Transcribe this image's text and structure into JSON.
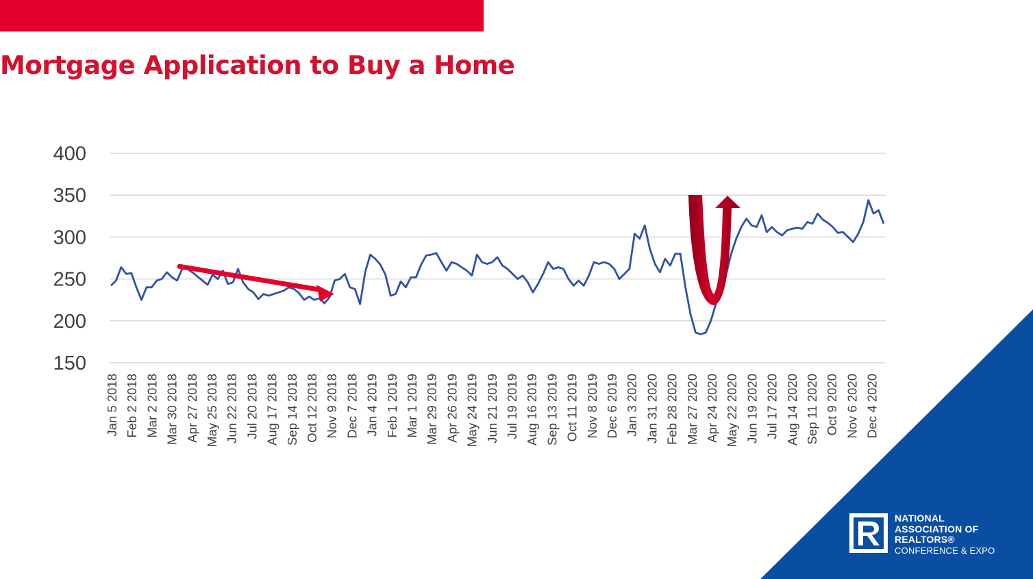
{
  "slide": {
    "title": "Mortgage Application to Buy a Home",
    "accent_color": "#e4002b",
    "corner_color": "#0a4ea2"
  },
  "logo": {
    "icon": "realtor-r-icon",
    "line1": "NATIONAL",
    "line2": "ASSOCIATION OF",
    "line3": "REALTORS®",
    "line4": "CONFERENCE & EXPO"
  },
  "chart_data": {
    "type": "line",
    "title": "",
    "xlabel": "",
    "ylabel": "",
    "ylim": [
      150,
      400
    ],
    "yticks": [
      150,
      200,
      250,
      300,
      350,
      400
    ],
    "grid": true,
    "line_color": "#2f52a6",
    "x_tick_labels": [
      "Jan 5 2018",
      "Feb 2 2018",
      "Mar 2 2018",
      "Mar 30 2018",
      "Apr 27 2018",
      "May 25 2018",
      "Jun 22 2018",
      "Jul 20 2018",
      "Aug 17 2018",
      "Sep 14 2018",
      "Oct 12 2018",
      "Nov 9 2018",
      "Dec 7 2018",
      "Jan 4 2019",
      "Feb 1 2019",
      "Mar 1 2019",
      "Mar 29 2019",
      "Apr 26 2019",
      "May 24 2019",
      "Jun 21 2019",
      "Jul 19 2019",
      "Aug 16 2019",
      "Sep 13 2019",
      "Oct 11 2019",
      "Nov 8 2019",
      "Dec 6 2019",
      "Jan 3 2020",
      "Jan 31 2020",
      "Feb 28 2020",
      "Mar 27 2020",
      "Apr 24 2020",
      "May 22 2020",
      "Jun 19 2020",
      "Jul 17 2020",
      "Aug 14 2020",
      "Sep 11 2020",
      "Oct 9 2020",
      "Nov 6 2020",
      "Dec 4 2020"
    ],
    "series": [
      {
        "values": [
          242,
          248,
          264,
          256,
          257,
          240,
          225,
          240,
          240,
          248,
          250,
          258,
          252,
          248,
          262,
          262,
          258,
          253,
          248,
          243,
          255,
          250,
          260,
          244,
          246,
          262,
          246,
          238,
          234,
          226,
          232,
          230,
          232,
          234,
          236,
          240,
          238,
          233,
          225,
          229,
          225,
          227,
          221,
          228,
          248,
          250,
          256,
          240,
          238,
          220,
          258,
          279,
          274,
          267,
          255,
          230,
          232,
          247,
          240,
          252,
          252,
          267,
          278,
          279,
          281,
          270,
          260,
          270,
          268,
          264,
          260,
          254,
          279,
          270,
          268,
          270,
          276,
          266,
          262,
          256,
          250,
          254,
          246,
          234,
          244,
          256,
          270,
          262,
          264,
          262,
          250,
          242,
          248,
          242,
          254,
          270,
          268,
          270,
          268,
          262,
          250,
          256,
          262,
          304,
          298,
          314,
          286,
          268,
          258,
          274,
          266,
          280,
          280,
          240,
          208,
          186,
          184,
          186,
          200,
          220,
          235,
          255,
          280,
          298,
          312,
          322,
          314,
          312,
          326,
          306,
          312,
          306,
          302,
          308,
          310,
          311,
          310,
          318,
          316,
          328,
          321,
          317,
          312,
          305,
          306,
          300,
          294,
          304,
          318,
          344,
          328,
          332,
          316
        ]
      }
    ],
    "annotations": [
      {
        "type": "arrow",
        "description": "downward trend arrow",
        "from": [
          "Apr 2018",
          265
        ],
        "to": [
          "Nov 2018",
          232
        ],
        "color": "#e4002b"
      },
      {
        "type": "u-turn-arrow",
        "description": "V-shaped recovery arrow",
        "from": [
          "Mar 2020",
          350
        ],
        "bottom": [
          "Apr 2020",
          220
        ],
        "to": [
          "May 2020",
          352
        ],
        "color": "#b3001e"
      }
    ]
  }
}
